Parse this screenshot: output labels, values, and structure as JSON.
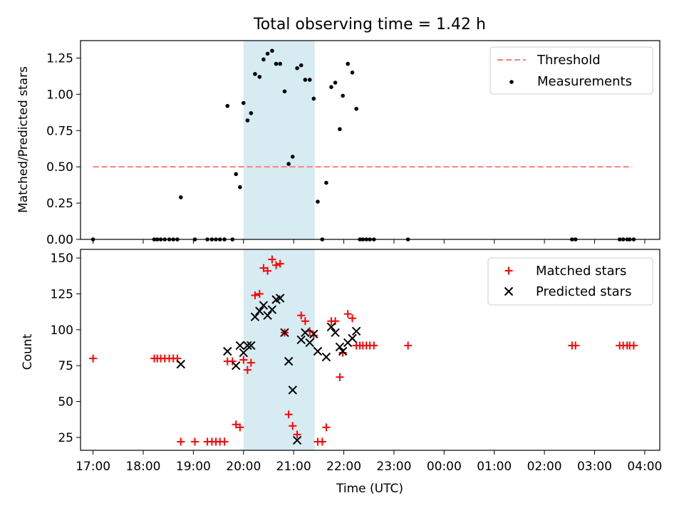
{
  "title": "Total observing time = 1.42 h",
  "colors": {
    "threshold": "#ff7f7f",
    "measurements": "#000000",
    "matched": "#ff0000",
    "predicted": "#000000",
    "span": "#add8e6"
  },
  "chart_data": [
    {
      "type": "scatter",
      "ylabel": "Matched/Predicted stars",
      "xlim": [
        16.75,
        28.3
      ],
      "ylim": [
        0,
        1.37
      ],
      "yticks": [
        0,
        0.25,
        0.5,
        0.75,
        1.0,
        1.25
      ],
      "ytick_labels": [
        "0.00",
        "0.25",
        "0.50",
        "0.75",
        "1.00",
        "1.25"
      ],
      "highlight_span": [
        20.0,
        21.42
      ],
      "threshold": {
        "name": "Threshold",
        "y": 0.5,
        "x_range": [
          17.0,
          27.75
        ]
      },
      "series": [
        {
          "name": "Measurements",
          "points": [
            [
              17.0,
              0
            ],
            [
              18.22,
              0
            ],
            [
              18.28,
              0
            ],
            [
              18.35,
              0
            ],
            [
              18.43,
              0
            ],
            [
              18.52,
              0
            ],
            [
              18.6,
              0
            ],
            [
              18.68,
              0
            ],
            [
              18.75,
              0.29
            ],
            [
              19.03,
              0
            ],
            [
              19.28,
              0
            ],
            [
              19.37,
              0
            ],
            [
              19.45,
              0
            ],
            [
              19.53,
              0
            ],
            [
              19.62,
              0
            ],
            [
              19.68,
              0.92
            ],
            [
              19.78,
              0
            ],
            [
              19.85,
              0.45
            ],
            [
              19.93,
              0.36
            ],
            [
              20.0,
              0.94
            ],
            [
              20.08,
              0.82
            ],
            [
              20.15,
              0.87
            ],
            [
              20.23,
              1.14
            ],
            [
              20.32,
              1.12
            ],
            [
              20.4,
              1.24
            ],
            [
              20.48,
              1.28
            ],
            [
              20.57,
              1.3
            ],
            [
              20.65,
              1.21
            ],
            [
              20.73,
              1.21
            ],
            [
              20.82,
              1.02
            ],
            [
              20.9,
              0.52
            ],
            [
              20.98,
              0.57
            ],
            [
              21.07,
              1.18
            ],
            [
              21.15,
              1.2
            ],
            [
              21.23,
              1.1
            ],
            [
              21.32,
              1.1
            ],
            [
              21.4,
              0.97
            ],
            [
              21.48,
              0.26
            ],
            [
              21.57,
              0
            ],
            [
              21.65,
              0.39
            ],
            [
              21.75,
              1.05
            ],
            [
              21.83,
              1.08
            ],
            [
              21.92,
              0.76
            ],
            [
              21.98,
              0.99
            ],
            [
              22.08,
              1.21
            ],
            [
              22.17,
              1.15
            ],
            [
              22.25,
              0.9
            ],
            [
              22.32,
              0
            ],
            [
              22.38,
              0
            ],
            [
              22.45,
              0
            ],
            [
              22.52,
              0
            ],
            [
              22.6,
              0
            ],
            [
              23.28,
              0
            ],
            [
              26.55,
              0
            ],
            [
              26.62,
              0
            ],
            [
              27.5,
              0
            ],
            [
              27.57,
              0
            ],
            [
              27.65,
              0
            ],
            [
              27.7,
              0
            ],
            [
              27.78,
              0
            ]
          ]
        }
      ],
      "legend": "top-right"
    },
    {
      "type": "scatter",
      "xlabel": "Time (UTC)",
      "ylabel": "Count",
      "xlim": [
        16.75,
        28.3
      ],
      "ylim": [
        16,
        156
      ],
      "yticks": [
        25,
        50,
        75,
        100,
        125,
        150
      ],
      "ytick_labels": [
        "25",
        "50",
        "75",
        "100",
        "125",
        "150"
      ],
      "xticks": [
        17,
        18,
        19,
        20,
        21,
        22,
        23,
        24,
        25,
        26,
        27,
        28
      ],
      "xtick_labels": [
        "17:00",
        "18:00",
        "19:00",
        "20:00",
        "21:00",
        "22:00",
        "23:00",
        "00:00",
        "01:00",
        "02:00",
        "03:00",
        "04:00"
      ],
      "highlight_span": [
        20.0,
        21.42
      ],
      "series": [
        {
          "name": "Matched stars",
          "marker": "plus",
          "points": [
            [
              17.0,
              80
            ],
            [
              18.22,
              80
            ],
            [
              18.28,
              80
            ],
            [
              18.35,
              80
            ],
            [
              18.43,
              80
            ],
            [
              18.52,
              80
            ],
            [
              18.6,
              80
            ],
            [
              18.68,
              80
            ],
            [
              18.75,
              22
            ],
            [
              19.03,
              22
            ],
            [
              19.28,
              22
            ],
            [
              19.37,
              22
            ],
            [
              19.45,
              22
            ],
            [
              19.53,
              22
            ],
            [
              19.62,
              22
            ],
            [
              19.68,
              78
            ],
            [
              19.78,
              78
            ],
            [
              19.85,
              34
            ],
            [
              19.93,
              32
            ],
            [
              20.0,
              79
            ],
            [
              20.08,
              72
            ],
            [
              20.15,
              77
            ],
            [
              20.23,
              124
            ],
            [
              20.32,
              125
            ],
            [
              20.4,
              143
            ],
            [
              20.48,
              141
            ],
            [
              20.57,
              149
            ],
            [
              20.65,
              145
            ],
            [
              20.73,
              146
            ],
            [
              20.82,
              98
            ],
            [
              20.9,
              41
            ],
            [
              20.98,
              33
            ],
            [
              21.07,
              27
            ],
            [
              21.15,
              110
            ],
            [
              21.23,
              106
            ],
            [
              21.32,
              99
            ],
            [
              21.4,
              96
            ],
            [
              21.48,
              22
            ],
            [
              21.57,
              22
            ],
            [
              21.65,
              32
            ],
            [
              21.75,
              106
            ],
            [
              21.83,
              106
            ],
            [
              21.92,
              67
            ],
            [
              21.98,
              84
            ],
            [
              22.08,
              111
            ],
            [
              22.17,
              108
            ],
            [
              22.25,
              89
            ],
            [
              22.32,
              89
            ],
            [
              22.38,
              89
            ],
            [
              22.45,
              89
            ],
            [
              22.52,
              89
            ],
            [
              22.6,
              89
            ],
            [
              23.28,
              89
            ],
            [
              26.55,
              89
            ],
            [
              26.62,
              89
            ],
            [
              27.5,
              89
            ],
            [
              27.57,
              89
            ],
            [
              27.65,
              89
            ],
            [
              27.7,
              89
            ],
            [
              27.78,
              89
            ]
          ]
        },
        {
          "name": "Predicted stars",
          "marker": "x",
          "points": [
            [
              18.75,
              76
            ],
            [
              19.68,
              85
            ],
            [
              19.85,
              75
            ],
            [
              19.93,
              89
            ],
            [
              20.0,
              84
            ],
            [
              20.08,
              89
            ],
            [
              20.15,
              89
            ],
            [
              20.23,
              109
            ],
            [
              20.32,
              113
            ],
            [
              20.4,
              117
            ],
            [
              20.48,
              110
            ],
            [
              20.57,
              114
            ],
            [
              20.65,
              121
            ],
            [
              20.73,
              122
            ],
            [
              20.82,
              98
            ],
            [
              20.9,
              78
            ],
            [
              20.98,
              58
            ],
            [
              21.07,
              23
            ],
            [
              21.15,
              93
            ],
            [
              21.23,
              98
            ],
            [
              21.32,
              91
            ],
            [
              21.4,
              97
            ],
            [
              21.48,
              85
            ],
            [
              21.65,
              81
            ],
            [
              21.75,
              102
            ],
            [
              21.83,
              98
            ],
            [
              21.92,
              88
            ],
            [
              21.98,
              85
            ],
            [
              22.08,
              91
            ],
            [
              22.17,
              94
            ],
            [
              22.25,
              99
            ]
          ]
        }
      ],
      "legend": "top-right"
    }
  ]
}
